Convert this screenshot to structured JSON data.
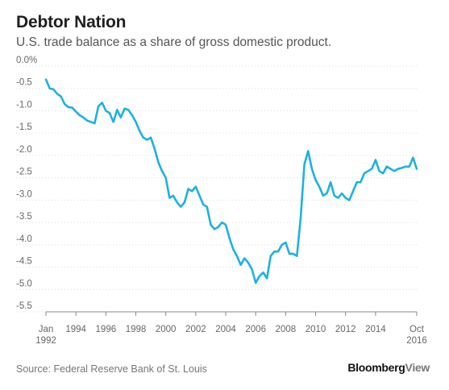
{
  "header": {
    "title": "Debtor Nation",
    "subtitle": "U.S. trade balance as a share of gross domestic product."
  },
  "footer": {
    "source": "Source: Federal Reserve Bank of St. Louis",
    "brand_main": "Bloomberg",
    "brand_sub": "View"
  },
  "colors": {
    "line": "#1DB1E3",
    "grid": "#dddddd",
    "axis": "#888888",
    "text": "#666666"
  },
  "chart_data": {
    "type": "line",
    "title": "Debtor Nation",
    "subtitle": "U.S. trade balance as a share of gross domestic product.",
    "xlabel": "",
    "ylabel": "",
    "xlim": [
      "1992-01",
      "2016-10"
    ],
    "ylim": [
      -5.5,
      0.0
    ],
    "grid": true,
    "yticks": [
      {
        "value": 0.0,
        "label": "0.0%"
      },
      {
        "value": -0.5,
        "label": "-0.5"
      },
      {
        "value": -1.0,
        "label": "-1.0"
      },
      {
        "value": -1.5,
        "label": "-1.5"
      },
      {
        "value": -2.0,
        "label": "-2.0"
      },
      {
        "value": -2.5,
        "label": "-2.5"
      },
      {
        "value": -3.0,
        "label": "-3.0"
      },
      {
        "value": -3.5,
        "label": "-3.5"
      },
      {
        "value": -4.0,
        "label": "-4.0"
      },
      {
        "value": -4.5,
        "label": "-4.5"
      },
      {
        "value": -5.0,
        "label": "-5.0"
      },
      {
        "value": -5.5,
        "label": "-5.5"
      }
    ],
    "xticks": [
      {
        "date": "1992-01",
        "line1": "Jan",
        "line2": "1992"
      },
      {
        "date": "1994",
        "line1": "1994",
        "line2": ""
      },
      {
        "date": "1996",
        "line1": "1996",
        "line2": ""
      },
      {
        "date": "1998",
        "line1": "1998",
        "line2": ""
      },
      {
        "date": "2000",
        "line1": "2000",
        "line2": ""
      },
      {
        "date": "2002",
        "line1": "2002",
        "line2": ""
      },
      {
        "date": "2004",
        "line1": "2004",
        "line2": ""
      },
      {
        "date": "2006",
        "line1": "2006",
        "line2": ""
      },
      {
        "date": "2008",
        "line1": "2008",
        "line2": ""
      },
      {
        "date": "2010",
        "line1": "2010",
        "line2": ""
      },
      {
        "date": "2012",
        "line1": "2012",
        "line2": ""
      },
      {
        "date": "2014",
        "line1": "2014",
        "line2": ""
      },
      {
        "date": "2016-10",
        "line1": "Oct",
        "line2": "2016"
      }
    ],
    "series": [
      {
        "points": [
          [
            "1992-01",
            -0.3
          ],
          [
            "1992-04",
            -0.5
          ],
          [
            "1992-07",
            -0.52
          ],
          [
            "1992-10",
            -0.62
          ],
          [
            "1993-01",
            -0.68
          ],
          [
            "1993-04",
            -0.85
          ],
          [
            "1993-07",
            -0.92
          ],
          [
            "1993-10",
            -0.93
          ],
          [
            "1994-01",
            -1.02
          ],
          [
            "1994-04",
            -1.1
          ],
          [
            "1994-07",
            -1.15
          ],
          [
            "1994-10",
            -1.22
          ],
          [
            "1995-01",
            -1.25
          ],
          [
            "1995-04",
            -1.28
          ],
          [
            "1995-07",
            -0.9
          ],
          [
            "1995-10",
            -0.82
          ],
          [
            "1996-01",
            -1.0
          ],
          [
            "1996-04",
            -1.05
          ],
          [
            "1996-07",
            -1.25
          ],
          [
            "1996-10",
            -0.98
          ],
          [
            "1997-01",
            -1.15
          ],
          [
            "1997-04",
            -0.95
          ],
          [
            "1997-07",
            -0.98
          ],
          [
            "1997-10",
            -1.1
          ],
          [
            "1998-01",
            -1.25
          ],
          [
            "1998-04",
            -1.45
          ],
          [
            "1998-07",
            -1.6
          ],
          [
            "1998-10",
            -1.65
          ],
          [
            "1999-01",
            -1.6
          ],
          [
            "1999-04",
            -1.85
          ],
          [
            "1999-07",
            -2.15
          ],
          [
            "1999-10",
            -2.35
          ],
          [
            "2000-01",
            -2.5
          ],
          [
            "2000-04",
            -2.95
          ],
          [
            "2000-07",
            -2.9
          ],
          [
            "2000-10",
            -3.05
          ],
          [
            "2001-01",
            -3.15
          ],
          [
            "2001-04",
            -3.05
          ],
          [
            "2001-07",
            -2.75
          ],
          [
            "2001-10",
            -2.8
          ],
          [
            "2002-01",
            -2.7
          ],
          [
            "2002-04",
            -2.9
          ],
          [
            "2002-07",
            -3.1
          ],
          [
            "2002-10",
            -3.15
          ],
          [
            "2003-01",
            -3.55
          ],
          [
            "2003-04",
            -3.65
          ],
          [
            "2003-07",
            -3.6
          ],
          [
            "2003-10",
            -3.5
          ],
          [
            "2004-01",
            -3.55
          ],
          [
            "2004-04",
            -3.85
          ],
          [
            "2004-07",
            -4.1
          ],
          [
            "2004-10",
            -4.25
          ],
          [
            "2005-01",
            -4.45
          ],
          [
            "2005-04",
            -4.3
          ],
          [
            "2005-07",
            -4.4
          ],
          [
            "2005-10",
            -4.55
          ],
          [
            "2006-01",
            -4.85
          ],
          [
            "2006-04",
            -4.7
          ],
          [
            "2006-07",
            -4.62
          ],
          [
            "2006-10",
            -4.75
          ],
          [
            "2007-01",
            -4.25
          ],
          [
            "2007-04",
            -4.15
          ],
          [
            "2007-07",
            -4.15
          ],
          [
            "2007-10",
            -4.0
          ],
          [
            "2008-01",
            -3.95
          ],
          [
            "2008-04",
            -4.2
          ],
          [
            "2008-07",
            -4.2
          ],
          [
            "2008-10",
            -4.25
          ],
          [
            "2009-01",
            -3.4
          ],
          [
            "2009-04",
            -2.2
          ],
          [
            "2009-07",
            -1.9
          ],
          [
            "2009-10",
            -2.3
          ],
          [
            "2010-01",
            -2.55
          ],
          [
            "2010-04",
            -2.7
          ],
          [
            "2010-07",
            -2.9
          ],
          [
            "2010-10",
            -2.85
          ],
          [
            "2011-01",
            -2.6
          ],
          [
            "2011-04",
            -2.9
          ],
          [
            "2011-07",
            -2.95
          ],
          [
            "2011-10",
            -2.85
          ],
          [
            "2012-01",
            -2.95
          ],
          [
            "2012-04",
            -3.0
          ],
          [
            "2012-07",
            -2.8
          ],
          [
            "2012-10",
            -2.6
          ],
          [
            "2013-01",
            -2.6
          ],
          [
            "2013-04",
            -2.4
          ],
          [
            "2013-07",
            -2.35
          ],
          [
            "2013-10",
            -2.3
          ],
          [
            "2014-01",
            -2.1
          ],
          [
            "2014-04",
            -2.35
          ],
          [
            "2014-07",
            -2.4
          ],
          [
            "2014-10",
            -2.25
          ],
          [
            "2015-01",
            -2.3
          ],
          [
            "2015-04",
            -2.35
          ],
          [
            "2015-07",
            -2.3
          ],
          [
            "2015-10",
            -2.28
          ],
          [
            "2016-01",
            -2.25
          ],
          [
            "2016-04",
            -2.25
          ],
          [
            "2016-07",
            -2.05
          ],
          [
            "2016-10",
            -2.3
          ]
        ]
      }
    ]
  }
}
